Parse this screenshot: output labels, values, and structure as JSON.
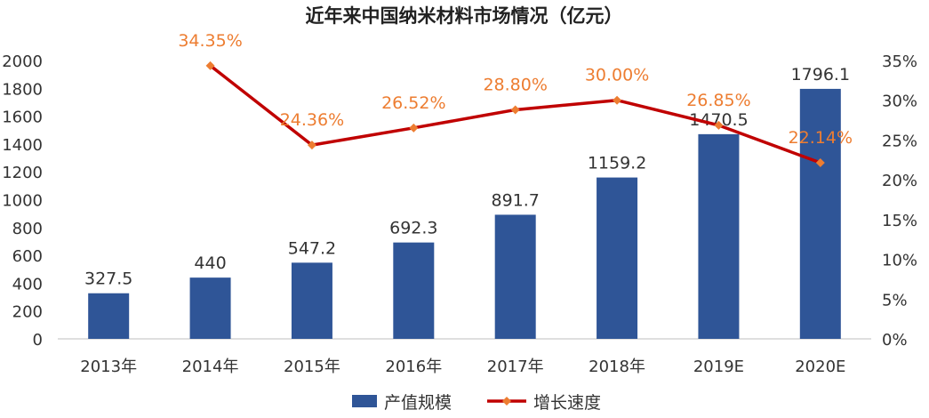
{
  "chart_data": {
    "type": "bar",
    "title": "近年来中国纳米材料市场情况（亿元）",
    "categories": [
      "2013年",
      "2014年",
      "2015年",
      "2016年",
      "2017年",
      "2018年",
      "2019E",
      "2020E"
    ],
    "series": [
      {
        "name": "产值规模",
        "type": "bar",
        "axis": "left",
        "color": "#2f5597",
        "values": [
          327.5,
          440,
          547.2,
          692.3,
          891.7,
          1159.2,
          1470.5,
          1796.1
        ],
        "labels": [
          "327.5",
          "440",
          "547.2",
          "692.3",
          "891.7",
          "1159.2",
          "1470.5",
          "1796.1"
        ]
      },
      {
        "name": "增长速度",
        "type": "line",
        "axis": "right",
        "color": "#c00000",
        "marker_color": "#ed7d31",
        "label_color": "#ed7d31",
        "values": [
          null,
          34.35,
          24.36,
          26.52,
          28.8,
          30.0,
          26.85,
          22.14
        ],
        "labels": [
          "",
          "34.35%",
          "24.36%",
          "26.52%",
          "28.80%",
          "30.00%",
          "26.85%",
          "22.14%"
        ]
      }
    ],
    "y_left": {
      "min": 0,
      "max": 2000,
      "ticks": [
        "0",
        "200",
        "400",
        "600",
        "800",
        "1000",
        "1200",
        "1400",
        "1600",
        "1800",
        "2000"
      ]
    },
    "y_right": {
      "min": 0,
      "max": 35,
      "ticks": [
        "0%",
        "5%",
        "10%",
        "15%",
        "20%",
        "25%",
        "30%",
        "35%"
      ]
    },
    "grid": false,
    "legend": "bottom"
  }
}
